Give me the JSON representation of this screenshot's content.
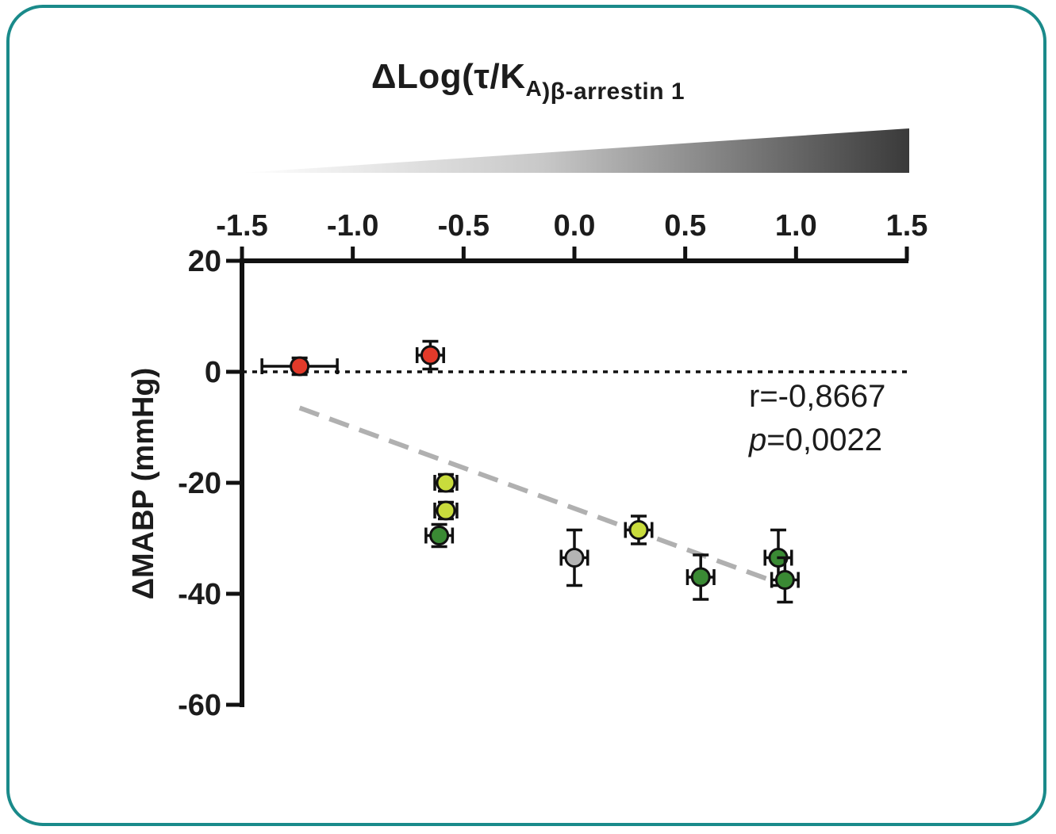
{
  "colors": {
    "frame": "#1a8a8a",
    "red": "#e23a2a",
    "yellow_green": "#c9dc3c",
    "green": "#3a8a34",
    "grey": "#b4b4b4",
    "fit_line": "#b0b0b0"
  },
  "chart_data": {
    "type": "scatter",
    "xlabel": "ΔLog(τ/K",
    "xlabel_sub1": "A",
    "xlabel_sub2": ")β-arrestin 1",
    "ylabel": "ΔMABP (mmHg)",
    "xlim": [
      -1.5,
      1.5
    ],
    "ylim": [
      -60,
      20
    ],
    "xticks": [
      "-1.5",
      "-1.0",
      "-0.5",
      "0.0",
      "0.5",
      "1.0",
      "1.5"
    ],
    "yticks": [
      "20",
      "0",
      "-20",
      "-40",
      "-60"
    ],
    "xaxis_position": "top",
    "points": [
      {
        "x": -1.24,
        "y": 1,
        "xerr": 0.17,
        "yerr": 1.5,
        "color": "red"
      },
      {
        "x": -0.65,
        "y": 3,
        "xerr": 0.06,
        "yerr": 2.5,
        "color": "red"
      },
      {
        "x": -0.58,
        "y": -20,
        "xerr": 0.05,
        "yerr": 1.5,
        "color": "yellow_green"
      },
      {
        "x": -0.58,
        "y": -25,
        "xerr": 0.05,
        "yerr": 1.5,
        "color": "yellow_green"
      },
      {
        "x": -0.61,
        "y": -29.5,
        "xerr": 0.06,
        "yerr": 2,
        "color": "green"
      },
      {
        "x": 0.0,
        "y": -33.5,
        "xerr": 0.06,
        "yerr": 5,
        "color": "grey"
      },
      {
        "x": 0.29,
        "y": -28.5,
        "xerr": 0.06,
        "yerr": 2.5,
        "color": "yellow_green"
      },
      {
        "x": 0.57,
        "y": -37,
        "xerr": 0.06,
        "yerr": 4,
        "color": "green"
      },
      {
        "x": 0.92,
        "y": -33.5,
        "xerr": 0.06,
        "yerr": 5,
        "color": "green"
      },
      {
        "x": 0.95,
        "y": -37.5,
        "xerr": 0.06,
        "yerr": 4,
        "color": "green"
      }
    ],
    "reference_line_y": 0,
    "fit_line": {
      "x": [
        -1.24,
        0.95
      ],
      "y": [
        -6.5,
        -38.5
      ]
    },
    "annotation": {
      "r": "r=-0,8667",
      "p_label": "p",
      "p_value": "=0,0022"
    }
  }
}
